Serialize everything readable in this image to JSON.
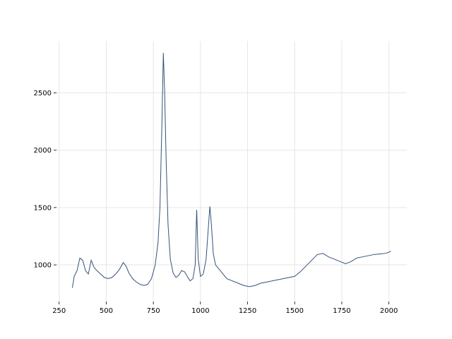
{
  "chart_data": {
    "type": "line",
    "x": [
      320,
      330,
      345,
      360,
      375,
      390,
      405,
      420,
      435,
      450,
      470,
      490,
      510,
      530,
      550,
      570,
      590,
      605,
      620,
      640,
      660,
      680,
      700,
      720,
      740,
      760,
      775,
      785,
      795,
      803,
      810,
      818,
      828,
      840,
      855,
      870,
      885,
      900,
      915,
      930,
      945,
      960,
      972,
      980,
      988,
      1000,
      1015,
      1030,
      1045,
      1050,
      1058,
      1068,
      1080,
      1100,
      1120,
      1140,
      1170,
      1200,
      1230,
      1260,
      1290,
      1320,
      1350,
      1380,
      1410,
      1440,
      1470,
      1500,
      1530,
      1560,
      1590,
      1620,
      1650,
      1680,
      1710,
      1740,
      1770,
      1800,
      1830,
      1860,
      1890,
      1920,
      1950,
      1980,
      2000,
      2010
    ],
    "series": [
      {
        "color": "#34527a",
        "values": [
          800,
          900,
          950,
          1060,
          1040,
          950,
          920,
          1040,
          980,
          950,
          920,
          890,
          880,
          890,
          920,
          960,
          1020,
          990,
          930,
          880,
          850,
          830,
          820,
          830,
          880,
          1000,
          1200,
          1500,
          2200,
          2850,
          2500,
          1900,
          1350,
          1050,
          930,
          890,
          910,
          950,
          940,
          900,
          860,
          880,
          1000,
          1480,
          1050,
          900,
          920,
          1050,
          1400,
          1510,
          1350,
          1100,
          1000,
          960,
          920,
          880,
          860,
          840,
          820,
          810,
          820,
          840,
          850,
          860,
          870,
          880,
          890,
          900,
          940,
          990,
          1040,
          1090,
          1100,
          1070,
          1050,
          1030,
          1010,
          1030,
          1060,
          1070,
          1080,
          1090,
          1095,
          1100,
          1110,
          1120
        ]
      }
    ],
    "xlim": [
      236,
      2095
    ],
    "ylim": [
      680,
      2953
    ],
    "xticks": [
      250,
      500,
      750,
      1000,
      1250,
      1500,
      1750,
      2000
    ],
    "yticks": [
      1000,
      1500,
      2000,
      2500
    ],
    "grid": true
  }
}
